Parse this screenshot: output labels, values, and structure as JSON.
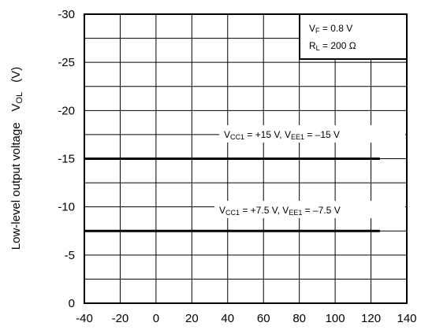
{
  "chart_data": {
    "type": "line",
    "xlabel": "",
    "ylabel": "Low-level output voltage",
    "ylabel_symbol": "V",
    "ylabel_symbol_sub": "OL",
    "ylabel_unit": "(V)",
    "xlim": [
      -40,
      140
    ],
    "ylim": [
      0,
      -30
    ],
    "x_ticks": [
      -40,
      -20,
      0,
      20,
      40,
      60,
      80,
      100,
      120,
      140
    ],
    "x_tick_labels": [
      "-40",
      "-20",
      "0",
      "20",
      "40",
      "60",
      "80",
      "100",
      "120",
      "140"
    ],
    "y_ticks": [
      0,
      -5,
      -10,
      -15,
      -20,
      -25,
      -30
    ],
    "y_tick_labels": [
      "0",
      "-5",
      "-10",
      "-15",
      "-20",
      "-25",
      "-30"
    ],
    "grid": true,
    "legend_placement": "top-right",
    "conditions": [
      {
        "main": "V",
        "sub": "F",
        "rest": " = 0.8 V"
      },
      {
        "main": "R",
        "sub": "L",
        "rest": " = 200 Ω"
      }
    ],
    "series": [
      {
        "x": [
          -40,
          125
        ],
        "y": [
          -15,
          -15
        ],
        "label": {
          "p1": "V",
          "s1": "CC1",
          "p2": " = +15 V, V",
          "s2": "EE1",
          "p3": " = –15 V"
        }
      },
      {
        "x": [
          -40,
          125
        ],
        "y": [
          -7.5,
          -7.5
        ],
        "label": {
          "p1": "V",
          "s1": "CC1",
          "p2": " = +7.5 V, V",
          "s2": "EE1",
          "p3": " = –7.5 V"
        }
      }
    ]
  }
}
